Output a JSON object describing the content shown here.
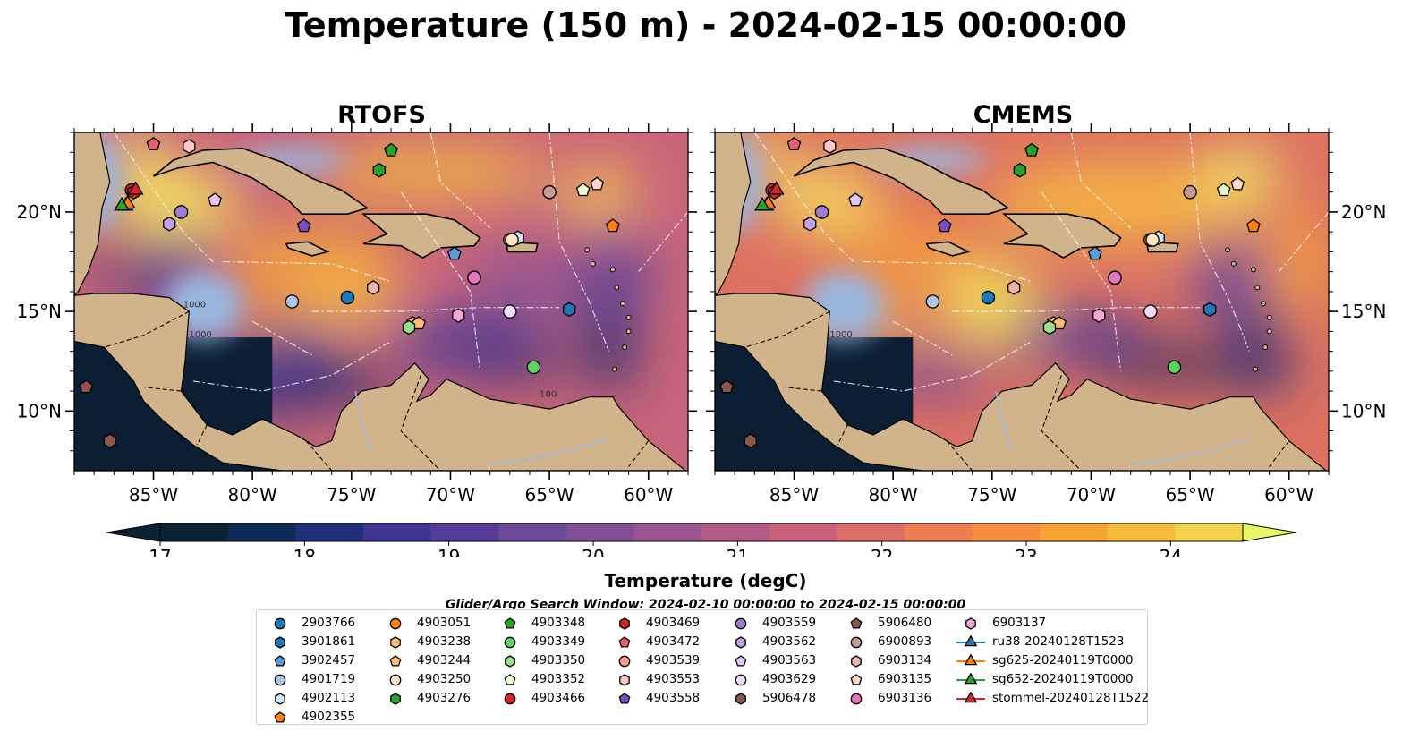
{
  "title": "Temperature (150 m) - 2024-02-15 00:00:00",
  "panels": [
    {
      "title": "RTOFS",
      "contour_labels": [
        "1000",
        "1000",
        "100"
      ]
    },
    {
      "title": "CMEMS",
      "contour_labels": [
        "1000"
      ]
    }
  ],
  "map": {
    "lon_range": [
      -89,
      -58
    ],
    "lat_range": [
      7,
      24
    ],
    "lon_ticks": [
      "85°W",
      "80°W",
      "75°W",
      "70°W",
      "65°W",
      "60°W"
    ],
    "lat_ticks": [
      "20°N",
      "15°N",
      "10°N"
    ],
    "colors": {
      "land": "#d2b48c",
      "shallow": "#9ab8e0",
      "deep": "#0b1e33"
    }
  },
  "colorbar": {
    "label": "Temperature (degC)",
    "ticks": [
      "17",
      "18",
      "19",
      "20",
      "21",
      "22",
      "23",
      "24"
    ],
    "range": [
      17,
      24.5
    ],
    "step": 0.5,
    "colors": [
      "#0a2233",
      "#102a58",
      "#1f3078",
      "#3d3590",
      "#553c99",
      "#6c4a97",
      "#824f95",
      "#9a5490",
      "#b35a86",
      "#c8617a",
      "#dc6e68",
      "#ec7e52",
      "#f58e40",
      "#f9a235",
      "#f8bc3b",
      "#f3d34e"
    ],
    "extend_over": "#e7f765"
  },
  "search_window": "Glider/Argo Search Window: 2024-02-10 00:00:00 to 2024-02-15 00:00:00",
  "platforms": [
    {
      "name": "2903766",
      "marker": "circle",
      "color": "#1f77b4",
      "lon": -75.2,
      "lat": 15.7
    },
    {
      "name": "3901861",
      "marker": "hexagon",
      "color": "#1f77b4",
      "lon": -64.0,
      "lat": 15.1
    },
    {
      "name": "3902457",
      "marker": "pentagon",
      "color": "#5b9bd5",
      "lon": -69.8,
      "lat": 17.9
    },
    {
      "name": "4901719",
      "marker": "circle",
      "color": "#aec7e8",
      "lon": -78.0,
      "lat": 15.5
    },
    {
      "name": "4902113",
      "marker": "hexagon",
      "color": "#cfe4f4",
      "lon": -66.6,
      "lat": 18.7
    },
    {
      "name": "4902355",
      "marker": "pentagon",
      "color": "#ff7f0e",
      "lon": -61.8,
      "lat": 19.3
    },
    {
      "name": "4903051",
      "marker": "circle",
      "color": "#ff7f0e",
      "lon": -67.0,
      "lat": 18.6
    },
    {
      "name": "4903238",
      "marker": "hexagon",
      "color": "#ffbb78",
      "lon": -71.9,
      "lat": 14.4
    },
    {
      "name": "4903244",
      "marker": "pentagon",
      "color": "#ffbb78",
      "lon": -71.6,
      "lat": 14.4
    },
    {
      "name": "4903250",
      "marker": "circle",
      "color": "#ffe4c4",
      "lon": -66.9,
      "lat": 18.6
    },
    {
      "name": "4903276",
      "marker": "hexagon",
      "color": "#2ca02c",
      "lon": -73.6,
      "lat": 22.1
    },
    {
      "name": "4903348",
      "marker": "pentagon",
      "color": "#2ca02c",
      "lon": -73.0,
      "lat": 23.1
    },
    {
      "name": "4903349",
      "marker": "circle",
      "color": "#5fd35f",
      "lon": -65.8,
      "lat": 12.2
    },
    {
      "name": "4903350",
      "marker": "hexagon",
      "color": "#98df8a",
      "lon": -72.1,
      "lat": 14.2
    },
    {
      "name": "4903352",
      "marker": "pentagon",
      "color": "#e8ffd0",
      "lon": -63.3,
      "lat": 21.1
    },
    {
      "name": "4903466",
      "marker": "circle",
      "color": "#d62728",
      "lon": -86.1,
      "lat": 21.1
    },
    {
      "name": "4903469",
      "marker": "hexagon",
      "color": "#d62728",
      "lon": -86.0,
      "lat": 21.0
    },
    {
      "name": "4903472",
      "marker": "pentagon",
      "color": "#e8616a",
      "lon": -85.0,
      "lat": 23.4
    },
    {
      "name": "4903539",
      "marker": "circle",
      "color": "#ff9896",
      "lon": -68.8,
      "lat": 16.7
    },
    {
      "name": "4903553",
      "marker": "hexagon",
      "color": "#ffc8c8",
      "lon": -83.2,
      "lat": 23.3
    },
    {
      "name": "4903558",
      "marker": "pentagon",
      "color": "#7b4fbf",
      "lon": -77.4,
      "lat": 19.3
    },
    {
      "name": "4903559",
      "marker": "circle",
      "color": "#a07cd0",
      "lon": -83.6,
      "lat": 20.0
    },
    {
      "name": "4903562",
      "marker": "hexagon",
      "color": "#c5a3e8",
      "lon": -84.2,
      "lat": 19.4
    },
    {
      "name": "4903563",
      "marker": "pentagon",
      "color": "#e0c8f8",
      "lon": -81.9,
      "lat": 20.6
    },
    {
      "name": "4903629",
      "marker": "circle",
      "color": "#efdcfa",
      "lon": -67.0,
      "lat": 15.0
    },
    {
      "name": "5906478",
      "marker": "hexagon",
      "color": "#8c564b",
      "lon": -87.2,
      "lat": 8.5
    },
    {
      "name": "5906480",
      "marker": "pentagon",
      "color": "#8c564b",
      "lon": -88.4,
      "lat": 11.2
    },
    {
      "name": "6900893",
      "marker": "circle",
      "color": "#c49c94",
      "lon": -65.0,
      "lat": 21.0
    },
    {
      "name": "6903134",
      "marker": "hexagon",
      "color": "#e8b7a8",
      "lon": -73.9,
      "lat": 16.2
    },
    {
      "name": "6903135",
      "marker": "pentagon",
      "color": "#ffd8c8",
      "lon": -62.6,
      "lat": 21.4
    },
    {
      "name": "6903136",
      "marker": "circle",
      "color": "#e377c2",
      "lon": -68.8,
      "lat": 16.7
    },
    {
      "name": "6903137",
      "marker": "hexagon",
      "color": "#f7a6d8",
      "lon": -69.6,
      "lat": 14.8
    },
    {
      "name": "ru38-20240128T1523",
      "marker": "triangle",
      "color": "#1f77b4",
      "line": true,
      "lon": -86.4,
      "lat": 20.3
    },
    {
      "name": "sg625-20240119T0000",
      "marker": "triangle",
      "color": "#ff7f0e",
      "line": true,
      "lon": -86.3,
      "lat": 20.4
    },
    {
      "name": "sg652-20240119T0000",
      "marker": "triangle",
      "color": "#2ca02c",
      "line": true,
      "lon": -86.6,
      "lat": 20.3
    },
    {
      "name": "stommel-20240128T1522",
      "marker": "triangle",
      "color": "#d62728",
      "line": true,
      "lon": -85.9,
      "lat": 21.1
    }
  ]
}
